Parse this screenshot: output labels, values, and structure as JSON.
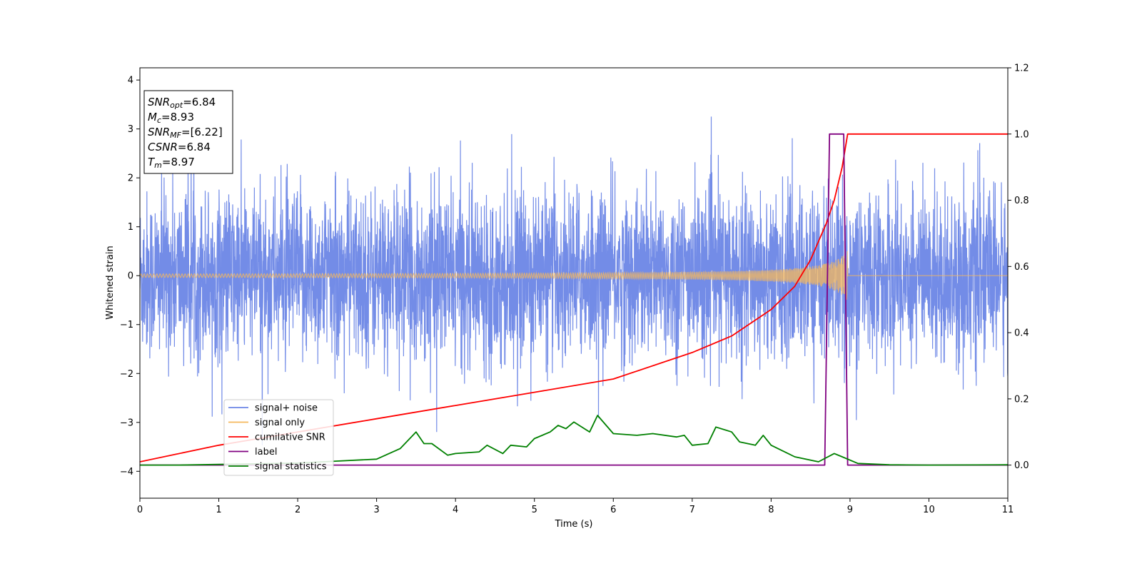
{
  "chart_data": {
    "type": "line",
    "xlabel": "Time (s)",
    "ylabel": "Whitened strain",
    "xlim": [
      0,
      11
    ],
    "ylim": [
      -4.55,
      4.25
    ],
    "y2lim": [
      -0.1,
      1.2
    ],
    "xticks": [
      "0",
      "1",
      "2",
      "3",
      "4",
      "5",
      "6",
      "7",
      "8",
      "9",
      "10",
      "11"
    ],
    "yticks": [
      "4",
      "3",
      "2",
      "1",
      "0",
      "−1",
      "−2",
      "−3",
      "−4"
    ],
    "yticks_values": [
      4,
      3,
      2,
      1,
      0,
      -1,
      -2,
      -3,
      -4
    ],
    "y2ticks": [
      "1.2",
      "1.0",
      "0.8",
      "0.6",
      "0.4",
      "0.2",
      "0.0"
    ],
    "y2ticks_values": [
      1.2,
      1.0,
      0.8,
      0.6,
      0.4,
      0.2,
      0.0
    ],
    "grid": false,
    "legend_placement": "lower-left",
    "series": [
      {
        "name": "signal+ noise",
        "axis": "left",
        "color": "#6b86e6",
        "description_type": "noise",
        "std": 0.85,
        "x_range": [
          0,
          11
        ]
      },
      {
        "name": "signal only",
        "axis": "left",
        "color": "#f5b85c",
        "description_type": "chirp",
        "merger_time": 8.97,
        "peak_amplitude": 0.5
      },
      {
        "name": "cumilative SNR",
        "axis": "right",
        "color": "#ff0000",
        "x": [
          0,
          1,
          2,
          3,
          4,
          5,
          6,
          7,
          7.5,
          8,
          8.3,
          8.5,
          8.7,
          8.8,
          8.9,
          8.97,
          11
        ],
        "values": [
          0.01,
          0.06,
          0.1,
          0.14,
          0.18,
          0.22,
          0.26,
          0.34,
          0.39,
          0.47,
          0.54,
          0.62,
          0.73,
          0.8,
          0.9,
          1.0,
          1.0
        ]
      },
      {
        "name": "label",
        "axis": "right",
        "color": "#800080",
        "x": [
          0,
          8.68,
          8.74,
          8.92,
          8.97,
          11
        ],
        "values": [
          0.0,
          0.0,
          1.0,
          1.0,
          0.0,
          0.0
        ]
      },
      {
        "name": "signal statistics",
        "axis": "right",
        "color": "#008000",
        "x": [
          0,
          0.5,
          1,
          1.5,
          2,
          2.5,
          3,
          3.3,
          3.5,
          3.6,
          3.7,
          3.9,
          4.0,
          4.3,
          4.4,
          4.6,
          4.7,
          4.9,
          5.0,
          5.2,
          5.3,
          5.4,
          5.5,
          5.7,
          5.8,
          6.0,
          6.3,
          6.5,
          6.8,
          6.9,
          7.0,
          7.2,
          7.3,
          7.5,
          7.6,
          7.8,
          7.9,
          8.0,
          8.3,
          8.6,
          8.8,
          8.9,
          9.1,
          9.5,
          10,
          11
        ],
        "values": [
          0.0,
          0.0,
          0.002,
          0.004,
          0.006,
          0.012,
          0.018,
          0.05,
          0.1,
          0.065,
          0.065,
          0.03,
          0.035,
          0.04,
          0.06,
          0.035,
          0.06,
          0.055,
          0.08,
          0.1,
          0.12,
          0.11,
          0.13,
          0.1,
          0.15,
          0.095,
          0.09,
          0.095,
          0.085,
          0.09,
          0.06,
          0.065,
          0.115,
          0.1,
          0.07,
          0.06,
          0.09,
          0.06,
          0.025,
          0.01,
          0.035,
          0.025,
          0.005,
          0.001,
          0.0,
          0.001
        ]
      }
    ],
    "info_box": {
      "lines": [
        {
          "sym": "SNR",
          "sub": "opt",
          "rest": "=6.84"
        },
        {
          "sym": "M",
          "sub": "c",
          "rest": "=8.93"
        },
        {
          "sym": "SNR",
          "sub": "MF",
          "rest": "=[6.22]"
        },
        {
          "sym": "CSNR",
          "sub": "",
          "rest": "=6.84"
        },
        {
          "sym": "T",
          "sub": "m",
          "rest": "=8.97"
        }
      ]
    }
  }
}
